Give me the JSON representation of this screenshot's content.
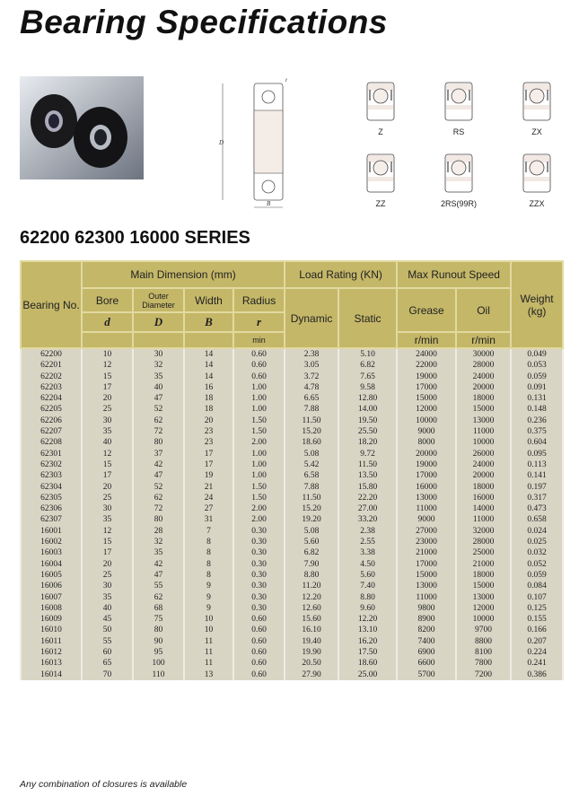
{
  "title": "Bearing Specifications",
  "series_heading": "62200 62300 16000 SERIES",
  "diagram_labels": {
    "D": "D",
    "d": "d",
    "B": "B",
    "r": "r"
  },
  "closures": [
    "Z",
    "RS",
    "ZX",
    "ZZ",
    "2RS(99R)",
    "ZZX"
  ],
  "table": {
    "headers": {
      "bearing_no": "Bearing No.",
      "main_dimension": "Main Dimension (mm)",
      "load_rating": "Load Rating (KN)",
      "max_speed": "Max Runout Speed",
      "weight": "Weight (kg)",
      "bore": "Bore",
      "outer_diameter": "Outer Diameter",
      "width": "Width",
      "radius": "Radius",
      "d": "d",
      "D": "D",
      "B": "B",
      "r": "r",
      "min": "min",
      "dynamic": "Dynamic",
      "static": "Static",
      "grease": "Grease",
      "oil": "Oil",
      "rmin1": "r/min",
      "rmin2": "r/min"
    },
    "rows": [
      [
        "62200",
        "10",
        "30",
        "14",
        "0.60",
        "2.38",
        "5.10",
        "24000",
        "30000",
        "0.049"
      ],
      [
        "62201",
        "12",
        "32",
        "14",
        "0.60",
        "3.05",
        "6.82",
        "22000",
        "28000",
        "0.053"
      ],
      [
        "62202",
        "15",
        "35",
        "14",
        "0.60",
        "3.72",
        "7.65",
        "19000",
        "24000",
        "0.059"
      ],
      [
        "62203",
        "17",
        "40",
        "16",
        "1.00",
        "4.78",
        "9.58",
        "17000",
        "20000",
        "0.091"
      ],
      [
        "62204",
        "20",
        "47",
        "18",
        "1.00",
        "6.65",
        "12.80",
        "15000",
        "18000",
        "0.131"
      ],
      [
        "62205",
        "25",
        "52",
        "18",
        "1.00",
        "7.88",
        "14.00",
        "12000",
        "15000",
        "0.148"
      ],
      [
        "62206",
        "30",
        "62",
        "20",
        "1.50",
        "11.50",
        "19.50",
        "10000",
        "13000",
        "0.236"
      ],
      [
        "62207",
        "35",
        "72",
        "23",
        "1.50",
        "15.20",
        "25.50",
        "9000",
        "11000",
        "0.375"
      ],
      [
        "62208",
        "40",
        "80",
        "23",
        "2.00",
        "18.60",
        "18.20",
        "8000",
        "10000",
        "0.604"
      ],
      [
        "62301",
        "12",
        "37",
        "17",
        "1.00",
        "5.08",
        "9.72",
        "20000",
        "26000",
        "0.095"
      ],
      [
        "62302",
        "15",
        "42",
        "17",
        "1.00",
        "5.42",
        "11.50",
        "19000",
        "24000",
        "0.113"
      ],
      [
        "62303",
        "17",
        "47",
        "19",
        "1.00",
        "6.58",
        "13.50",
        "17000",
        "20000",
        "0.141"
      ],
      [
        "62304",
        "20",
        "52",
        "21",
        "1.50",
        "7.88",
        "15.80",
        "16000",
        "18000",
        "0.197"
      ],
      [
        "62305",
        "25",
        "62",
        "24",
        "1.50",
        "11.50",
        "22.20",
        "13000",
        "16000",
        "0.317"
      ],
      [
        "62306",
        "30",
        "72",
        "27",
        "2.00",
        "15.20",
        "27.00",
        "11000",
        "14000",
        "0.473"
      ],
      [
        "62307",
        "35",
        "80",
        "31",
        "2.00",
        "19.20",
        "33.20",
        "9000",
        "11000",
        "0.658"
      ],
      [
        "16001",
        "12",
        "28",
        "7",
        "0.30",
        "5.08",
        "2.38",
        "27000",
        "32000",
        "0.024"
      ],
      [
        "16002",
        "15",
        "32",
        "8",
        "0.30",
        "5.60",
        "2.55",
        "23000",
        "28000",
        "0.025"
      ],
      [
        "16003",
        "17",
        "35",
        "8",
        "0.30",
        "6.82",
        "3.38",
        "21000",
        "25000",
        "0.032"
      ],
      [
        "16004",
        "20",
        "42",
        "8",
        "0.30",
        "7.90",
        "4.50",
        "17000",
        "21000",
        "0.052"
      ],
      [
        "16005",
        "25",
        "47",
        "8",
        "0.30",
        "8.80",
        "5.60",
        "15000",
        "18000",
        "0.059"
      ],
      [
        "16006",
        "30",
        "55",
        "9",
        "0.30",
        "11.20",
        "7.40",
        "13000",
        "15000",
        "0.084"
      ],
      [
        "16007",
        "35",
        "62",
        "9",
        "0.30",
        "12.20",
        "8.80",
        "11000",
        "13000",
        "0.107"
      ],
      [
        "16008",
        "40",
        "68",
        "9",
        "0.30",
        "12.60",
        "9.60",
        "9800",
        "12000",
        "0.125"
      ],
      [
        "16009",
        "45",
        "75",
        "10",
        "0.60",
        "15.60",
        "12.20",
        "8900",
        "10000",
        "0.155"
      ],
      [
        "16010",
        "50",
        "80",
        "10",
        "0.60",
        "16.10",
        "13.10",
        "8200",
        "9700",
        "0.166"
      ],
      [
        "16011",
        "55",
        "90",
        "11",
        "0.60",
        "19.40",
        "16.20",
        "7400",
        "8800",
        "0.207"
      ],
      [
        "16012",
        "60",
        "95",
        "11",
        "0.60",
        "19.90",
        "17.50",
        "6900",
        "8100",
        "0.224"
      ],
      [
        "16013",
        "65",
        "100",
        "11",
        "0.60",
        "20.50",
        "18.60",
        "6600",
        "7800",
        "0.241"
      ],
      [
        "16014",
        "70",
        "110",
        "13",
        "0.60",
        "27.90",
        "25.00",
        "5700",
        "7200",
        "0.386"
      ]
    ]
  },
  "footnote": "Any combination of closures is available",
  "colors": {
    "header": "#c4b768",
    "body": "#d8d5c5"
  }
}
